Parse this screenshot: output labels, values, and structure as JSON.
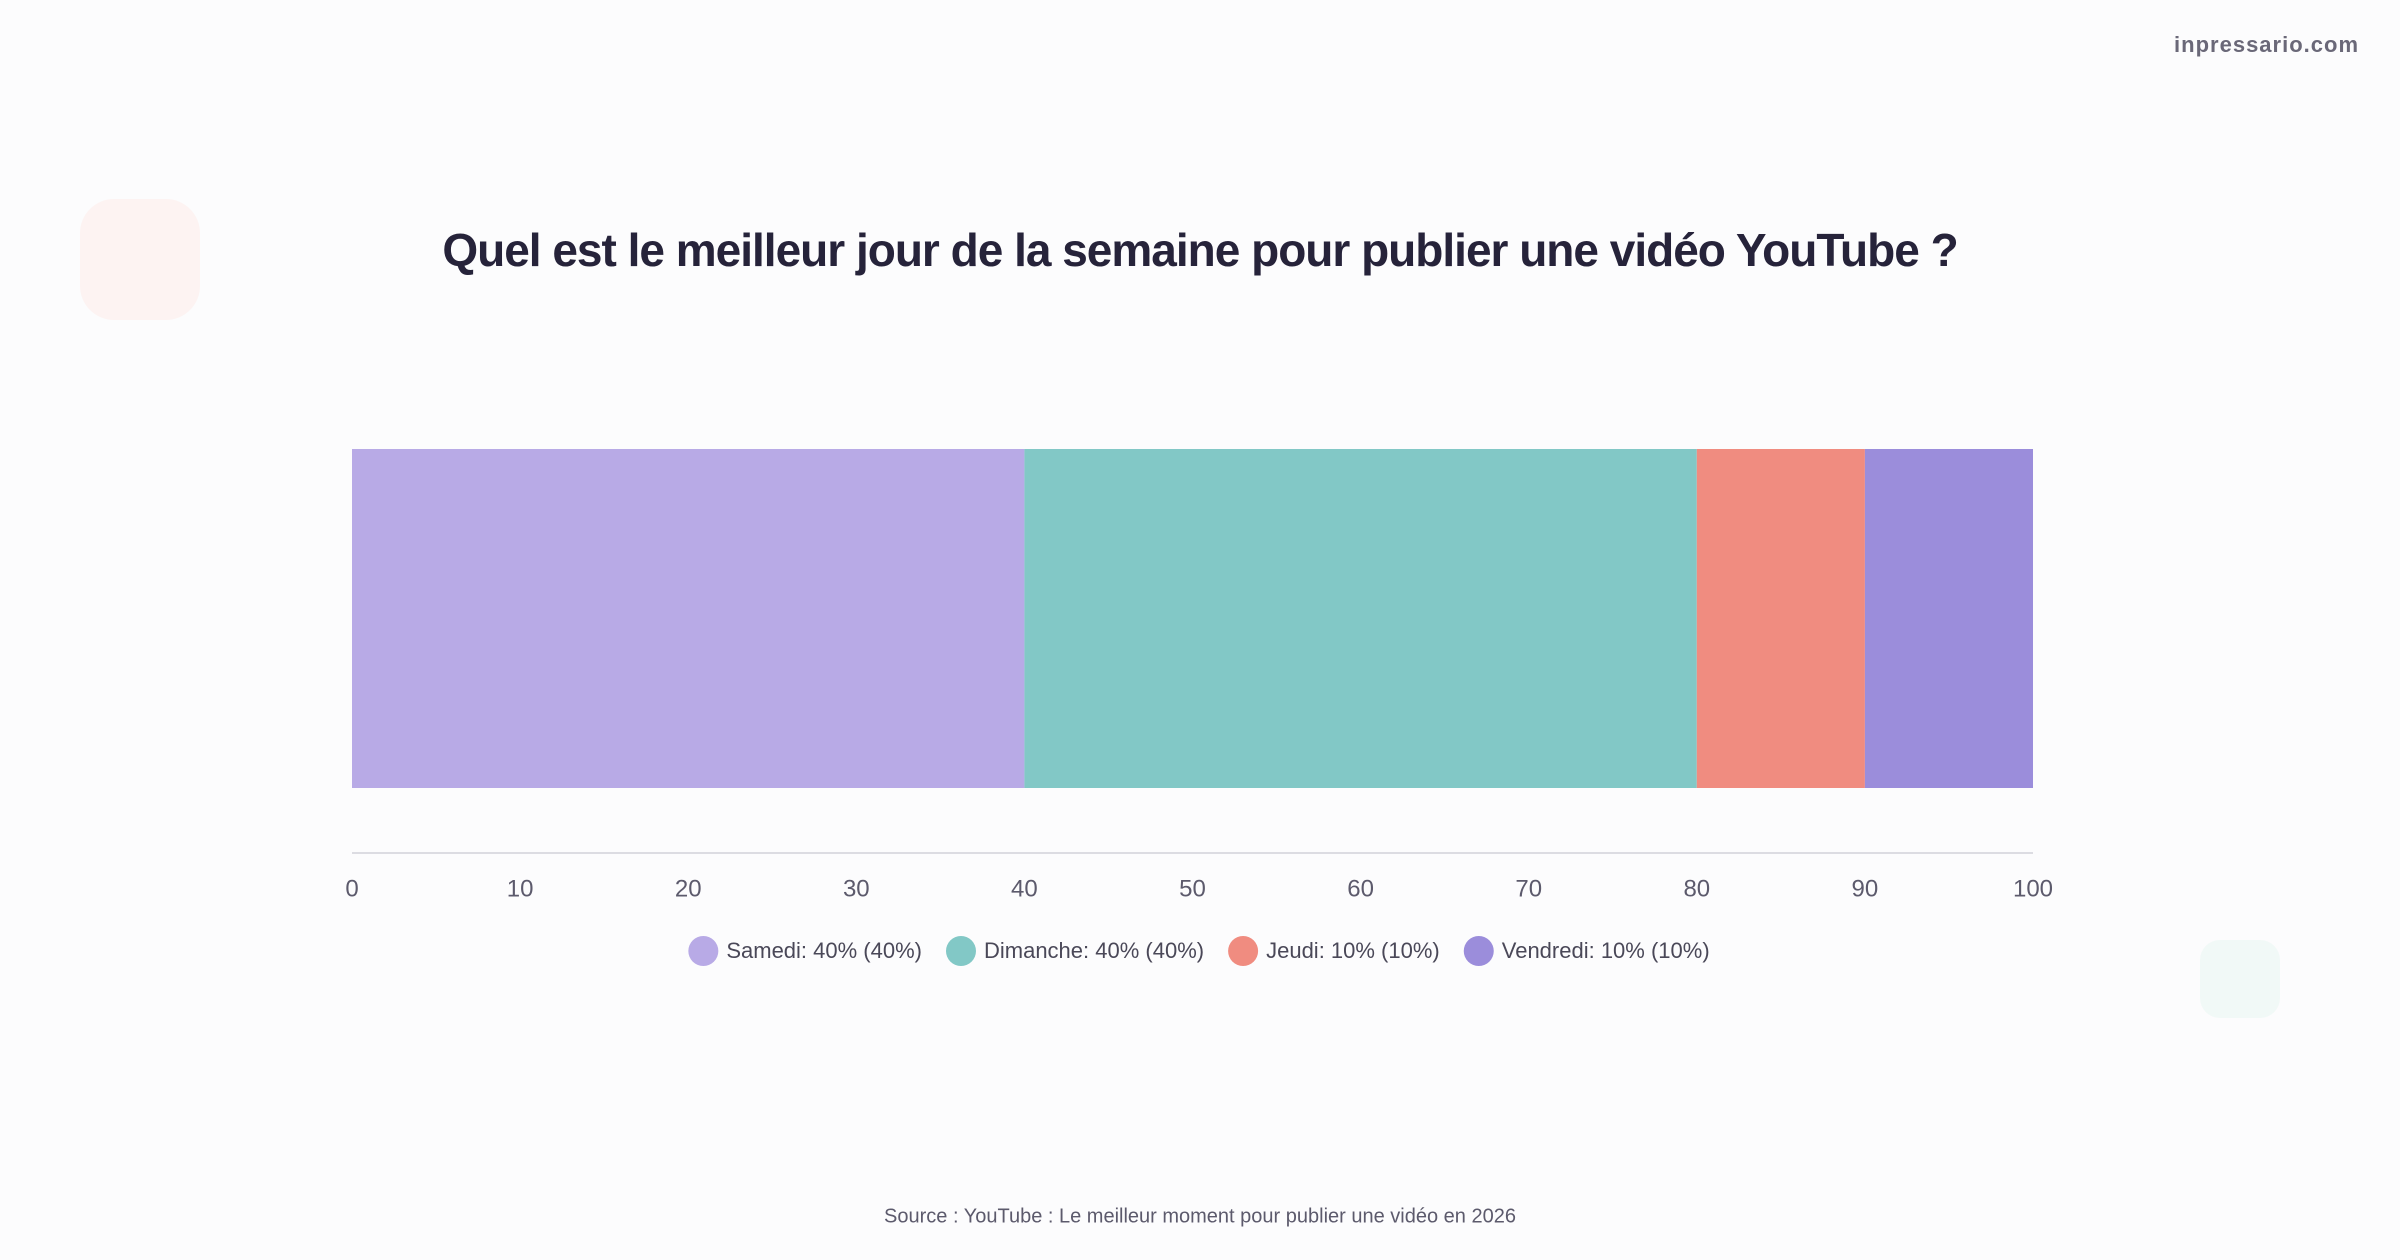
{
  "brand": "inpressario.com",
  "chart_data": {
    "type": "stacked-bar-horizontal",
    "title": "Quel est le meilleur jour de la semaine pour publier une vidéo YouTube ?",
    "series": [
      {
        "name": "Samedi: 40% (40%)",
        "color": "#b8aae6",
        "values": [
          40
        ]
      },
      {
        "name": "Dimanche: 40% (40%)",
        "color": "#82c8c6",
        "values": [
          40
        ]
      },
      {
        "name": "Jeudi: 10% (10%)",
        "color": "#f08c80",
        "values": [
          10
        ]
      },
      {
        "name": "Vendredi: 10% (10%)",
        "color": "#9b8ddb",
        "values": [
          10
        ]
      }
    ],
    "xlim": [
      0,
      100
    ],
    "xticks": [
      0,
      10,
      20,
      30,
      40,
      50,
      60,
      70,
      80,
      90,
      100
    ],
    "source": "Source : YouTube : Le meilleur moment pour publier une vidéo en 2026"
  }
}
